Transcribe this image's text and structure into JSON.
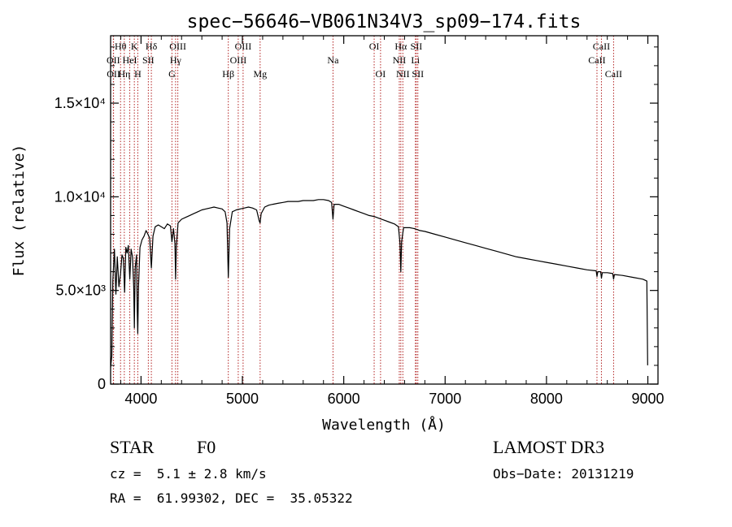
{
  "chart_data": {
    "type": "line",
    "title": "spec−56646−VB061N34V3_sp09−174.fits",
    "xlabel": "Wavelength (Å)",
    "ylabel": "Flux (relative)",
    "xlim": [
      3700,
      9100
    ],
    "ylim": [
      0,
      18600
    ],
    "x_ticks": [
      {
        "value": 4000,
        "label": "4000"
      },
      {
        "value": 5000,
        "label": "5000"
      },
      {
        "value": 6000,
        "label": "6000"
      },
      {
        "value": 7000,
        "label": "7000"
      },
      {
        "value": 8000,
        "label": "8000"
      },
      {
        "value": 9000,
        "label": "9000"
      }
    ],
    "y_ticks": [
      {
        "value": 0,
        "label": "0"
      },
      {
        "value": 5000,
        "label": "5.0×10³"
      },
      {
        "value": 10000,
        "label": "1.0×10⁴"
      },
      {
        "value": 15000,
        "label": "1.5×10⁴"
      }
    ],
    "spectral_lines": [
      {
        "name": "OII",
        "wavelength": 3727,
        "row": 2
      },
      {
        "name": "OII",
        "wavelength": 3729,
        "row": 3
      },
      {
        "name": "Hθ",
        "wavelength": 3798,
        "row": 1
      },
      {
        "name": "Hη",
        "wavelength": 3835,
        "row": 3
      },
      {
        "name": "HeI",
        "wavelength": 3889,
        "row": 2
      },
      {
        "name": "K",
        "wavelength": 3934,
        "row": 1
      },
      {
        "name": "H",
        "wavelength": 3968,
        "row": 3
      },
      {
        "name": "SII",
        "wavelength": 4072,
        "row": 2
      },
      {
        "name": "Hδ",
        "wavelength": 4102,
        "row": 1
      },
      {
        "name": "G",
        "wavelength": 4305,
        "row": 3
      },
      {
        "name": "Hγ",
        "wavelength": 4341,
        "row": 2
      },
      {
        "name": "OIII",
        "wavelength": 4363,
        "row": 1
      },
      {
        "name": "Hβ",
        "wavelength": 4861,
        "row": 3
      },
      {
        "name": "OIII",
        "wavelength": 4959,
        "row": 2
      },
      {
        "name": "OIII",
        "wavelength": 5007,
        "row": 1
      },
      {
        "name": "Mg",
        "wavelength": 5175,
        "row": 3
      },
      {
        "name": "Na",
        "wavelength": 5894,
        "row": 2
      },
      {
        "name": "OI",
        "wavelength": 6300,
        "row": 1
      },
      {
        "name": "OI",
        "wavelength": 6363,
        "row": 3
      },
      {
        "name": "NII",
        "wavelength": 6548,
        "row": 2
      },
      {
        "name": "Hα",
        "wavelength": 6563,
        "row": 1
      },
      {
        "name": "NII",
        "wavelength": 6583,
        "row": 3
      },
      {
        "name": "Li",
        "wavelength": 6707,
        "row": 2
      },
      {
        "name": "SII",
        "wavelength": 6716,
        "row": 1
      },
      {
        "name": "SII",
        "wavelength": 6731,
        "row": 3
      },
      {
        "name": "CaII",
        "wavelength": 8498,
        "row": 2
      },
      {
        "name": "CaII",
        "wavelength": 8542,
        "row": 1
      },
      {
        "name": "CaII",
        "wavelength": 8662,
        "row": 3
      }
    ],
    "series": [
      {
        "name": "flux",
        "points": [
          [
            3700,
            900
          ],
          [
            3712,
            1500
          ],
          [
            3722,
            5500
          ],
          [
            3738,
            7200
          ],
          [
            3752,
            4800
          ],
          [
            3766,
            6800
          ],
          [
            3782,
            5200
          ],
          [
            3798,
            5900
          ],
          [
            3812,
            6900
          ],
          [
            3826,
            6700
          ],
          [
            3838,
            4900
          ],
          [
            3850,
            7300
          ],
          [
            3862,
            7000
          ],
          [
            3875,
            7400
          ],
          [
            3889,
            5600
          ],
          [
            3902,
            7200
          ],
          [
            3916,
            6800
          ],
          [
            3928,
            5200
          ],
          [
            3934,
            3000
          ],
          [
            3942,
            6200
          ],
          [
            3956,
            6900
          ],
          [
            3962,
            4000
          ],
          [
            3968,
            2700
          ],
          [
            3975,
            5200
          ],
          [
            3990,
            7300
          ],
          [
            4010,
            7700
          ],
          [
            4030,
            7900
          ],
          [
            4050,
            8200
          ],
          [
            4068,
            8000
          ],
          [
            4085,
            7800
          ],
          [
            4102,
            6200
          ],
          [
            4118,
            7900
          ],
          [
            4140,
            8400
          ],
          [
            4170,
            8500
          ],
          [
            4200,
            8400
          ],
          [
            4230,
            8300
          ],
          [
            4260,
            8550
          ],
          [
            4290,
            8450
          ],
          [
            4305,
            7600
          ],
          [
            4320,
            8300
          ],
          [
            4335,
            7500
          ],
          [
            4341,
            5600
          ],
          [
            4348,
            7300
          ],
          [
            4365,
            8600
          ],
          [
            4400,
            8800
          ],
          [
            4440,
            8900
          ],
          [
            4480,
            9000
          ],
          [
            4520,
            9100
          ],
          [
            4560,
            9200
          ],
          [
            4600,
            9300
          ],
          [
            4640,
            9350
          ],
          [
            4680,
            9400
          ],
          [
            4720,
            9450
          ],
          [
            4760,
            9400
          ],
          [
            4800,
            9350
          ],
          [
            4830,
            9200
          ],
          [
            4848,
            8600
          ],
          [
            4861,
            5700
          ],
          [
            4874,
            8300
          ],
          [
            4900,
            9200
          ],
          [
            4940,
            9300
          ],
          [
            4980,
            9350
          ],
          [
            5020,
            9400
          ],
          [
            5060,
            9450
          ],
          [
            5100,
            9400
          ],
          [
            5140,
            9300
          ],
          [
            5167,
            8700
          ],
          [
            5175,
            8600
          ],
          [
            5185,
            9100
          ],
          [
            5220,
            9450
          ],
          [
            5260,
            9550
          ],
          [
            5300,
            9600
          ],
          [
            5350,
            9650
          ],
          [
            5400,
            9700
          ],
          [
            5450,
            9750
          ],
          [
            5500,
            9750
          ],
          [
            5550,
            9750
          ],
          [
            5600,
            9800
          ],
          [
            5650,
            9800
          ],
          [
            5700,
            9800
          ],
          [
            5750,
            9850
          ],
          [
            5800,
            9850
          ],
          [
            5850,
            9800
          ],
          [
            5880,
            9700
          ],
          [
            5894,
            8800
          ],
          [
            5905,
            9600
          ],
          [
            5950,
            9600
          ],
          [
            6000,
            9500
          ],
          [
            6050,
            9400
          ],
          [
            6100,
            9300
          ],
          [
            6150,
            9200
          ],
          [
            6200,
            9100
          ],
          [
            6250,
            9000
          ],
          [
            6300,
            8950
          ],
          [
            6350,
            8850
          ],
          [
            6400,
            8750
          ],
          [
            6450,
            8650
          ],
          [
            6500,
            8550
          ],
          [
            6540,
            8400
          ],
          [
            6555,
            7500
          ],
          [
            6563,
            6000
          ],
          [
            6571,
            7600
          ],
          [
            6590,
            8350
          ],
          [
            6650,
            8350
          ],
          [
            6700,
            8300
          ],
          [
            6750,
            8200
          ],
          [
            6800,
            8150
          ],
          [
            6900,
            8000
          ],
          [
            7000,
            7850
          ],
          [
            7100,
            7700
          ],
          [
            7200,
            7550
          ],
          [
            7300,
            7400
          ],
          [
            7400,
            7250
          ],
          [
            7500,
            7100
          ],
          [
            7600,
            6950
          ],
          [
            7700,
            6800
          ],
          [
            7800,
            6700
          ],
          [
            7900,
            6600
          ],
          [
            8000,
            6500
          ],
          [
            8100,
            6400
          ],
          [
            8200,
            6300
          ],
          [
            8300,
            6200
          ],
          [
            8400,
            6100
          ],
          [
            8490,
            6050
          ],
          [
            8498,
            5750
          ],
          [
            8506,
            6000
          ],
          [
            8534,
            6000
          ],
          [
            8542,
            5650
          ],
          [
            8550,
            5950
          ],
          [
            8600,
            5950
          ],
          [
            8654,
            5900
          ],
          [
            8662,
            5600
          ],
          [
            8670,
            5850
          ],
          [
            8750,
            5800
          ],
          [
            8850,
            5700
          ],
          [
            8950,
            5600
          ],
          [
            8990,
            5500
          ],
          [
            8998,
            1000
          ]
        ]
      }
    ]
  },
  "info": {
    "object_type": "STAR",
    "subclass": "F0",
    "survey": "LAMOST DR3",
    "redshift": "cz =  5.1 ± 2.8 km/s",
    "obs_date": "Obs−Date: 20131219",
    "coords": "RA =  61.99302, DEC =  35.05322"
  },
  "colors": {
    "axis": "#000000",
    "spectrum": "#000000",
    "line_marker": "#b22222"
  }
}
